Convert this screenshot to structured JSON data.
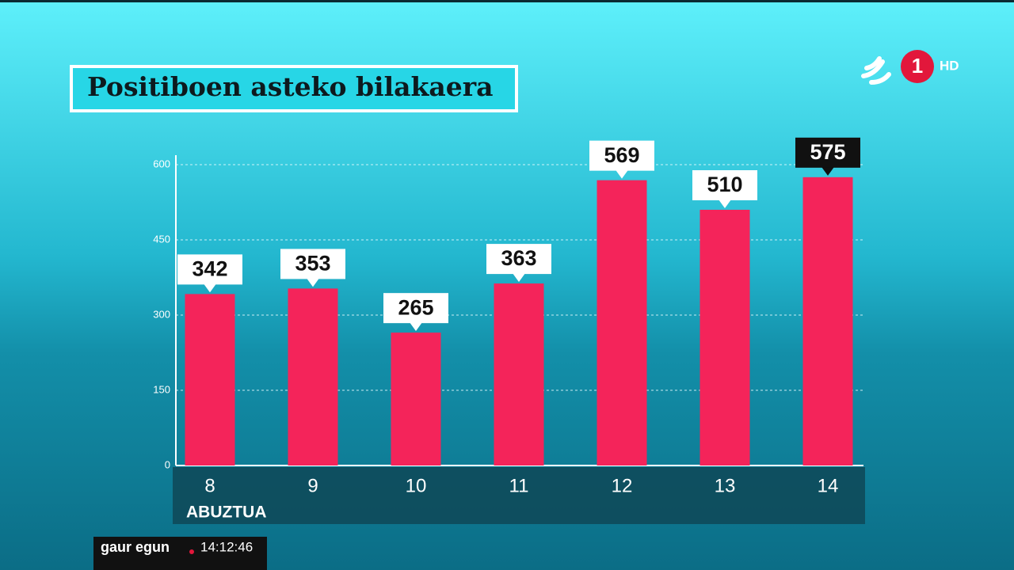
{
  "chart_data": {
    "type": "bar",
    "title": "Positiboen asteko bilakaera",
    "categories": [
      "8",
      "9",
      "10",
      "11",
      "12",
      "13",
      "14"
    ],
    "x_label": "ABUZTUA",
    "values": [
      342,
      353,
      265,
      363,
      569,
      510,
      575
    ],
    "color": "#f4245a",
    "ylim": [
      0,
      600
    ],
    "yticks": [
      0,
      150,
      300,
      450,
      600
    ],
    "grid": true,
    "highlight_index": 6
  },
  "overlay": {
    "program": "gaur egun",
    "clock": "14:12:46",
    "channel": "1",
    "quality": "HD"
  }
}
